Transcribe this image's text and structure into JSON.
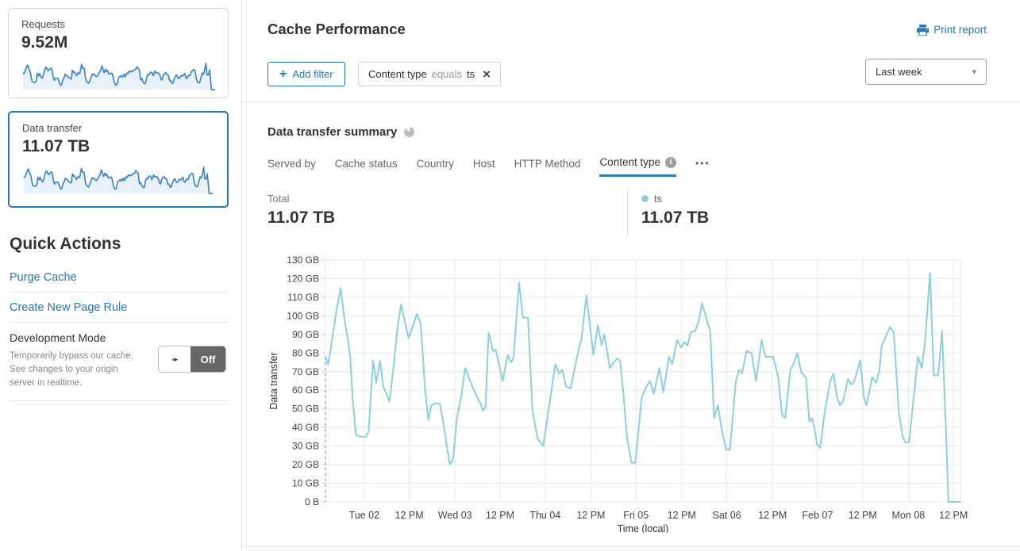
{
  "sidebar": {
    "requests_card": {
      "label": "Requests",
      "value": "9.52M"
    },
    "data_transfer_card": {
      "label": "Data transfer",
      "value": "11.07 TB"
    },
    "quick_actions": {
      "title": "Quick Actions",
      "purge_cache_label": "Purge Cache",
      "create_page_rule_label": "Create New Page Rule",
      "development_mode": {
        "title": "Development Mode",
        "description": "Temporarily bypass our cache. See changes to your origin server in realtime.",
        "toggle_state": "Off"
      }
    }
  },
  "header": {
    "title": "Cache Performance",
    "print_label": "Print report",
    "add_filter_label": "Add filter",
    "plus_glyph": "+",
    "filter_chip": {
      "field": "Content type",
      "operator": "equals",
      "value": "ts",
      "close_glyph": "×"
    },
    "time_range": "Last week",
    "caret_glyph": "▾"
  },
  "summary": {
    "title": "Data transfer summary",
    "tabs": [
      {
        "label": "Served by",
        "active": false
      },
      {
        "label": "Cache status",
        "active": false
      },
      {
        "label": "Country",
        "active": false
      },
      {
        "label": "Host",
        "active": false
      },
      {
        "label": "HTTP Method",
        "active": false
      },
      {
        "label": "Content type",
        "active": true,
        "has_info": true
      }
    ],
    "more_glyph": "•••",
    "total_label": "Total",
    "total_value": "11.07 TB",
    "legend": {
      "name": "ts",
      "value": "11.07 TB",
      "color": "#8bcfe0"
    }
  },
  "colors": {
    "accent_blue": "#2478b5",
    "chart_line": "#8bcfe0",
    "sparkline_line": "#3f87c6",
    "sparkline_fill": "#e9f2fa",
    "grid": "#e8e8e8"
  },
  "toggle_arrows": "◂▸",
  "chart_data": {
    "type": "line",
    "title": "Data transfer summary",
    "xlabel": "Time (local)",
    "ylabel": "Data transfer",
    "ylim": [
      0,
      130
    ],
    "grid": true,
    "leading_dashed_drop": true,
    "y_ticks": [
      "130 GB",
      "120 GB",
      "110 GB",
      "100 GB",
      "90 GB",
      "80 GB",
      "70 GB",
      "60 GB",
      "50 GB",
      "40 GB",
      "30 GB",
      "20 GB",
      "10 GB",
      "0 B"
    ],
    "x_ticks": [
      {
        "label": "Tue 02",
        "f": 0.061
      },
      {
        "label": "12 PM",
        "f": 0.132
      },
      {
        "label": "Wed 03",
        "f": 0.204
      },
      {
        "label": "12 PM",
        "f": 0.275
      },
      {
        "label": "Thu 04",
        "f": 0.346
      },
      {
        "label": "12 PM",
        "f": 0.418
      },
      {
        "label": "Fri 05",
        "f": 0.489
      },
      {
        "label": "12 PM",
        "f": 0.561
      },
      {
        "label": "Sat 06",
        "f": 0.632
      },
      {
        "label": "12 PM",
        "f": 0.704
      },
      {
        "label": "Feb 07",
        "f": 0.775
      },
      {
        "label": "12 PM",
        "f": 0.846
      },
      {
        "label": "Mon 08",
        "f": 0.918
      },
      {
        "label": "12 PM",
        "f": 0.989
      }
    ],
    "point_format": "[fraction_of_time_range, gigabytes]",
    "series": [
      {
        "name": "ts",
        "total": "11.07 TB",
        "color": "#8bcfe0",
        "points": [
          [
            0,
            78
          ],
          [
            0.004,
            74
          ],
          [
            0.01,
            86
          ],
          [
            0.016,
            100
          ],
          [
            0.024,
            115
          ],
          [
            0.03,
            98
          ],
          [
            0.035,
            88
          ],
          [
            0.039,
            78
          ],
          [
            0.043,
            55
          ],
          [
            0.048,
            36
          ],
          [
            0.056,
            35
          ],
          [
            0.064,
            35
          ],
          [
            0.068,
            38
          ],
          [
            0.075,
            76
          ],
          [
            0.08,
            64
          ],
          [
            0.086,
            76
          ],
          [
            0.091,
            62
          ],
          [
            0.096,
            58
          ],
          [
            0.101,
            54
          ],
          [
            0.107,
            72
          ],
          [
            0.114,
            95
          ],
          [
            0.119,
            106
          ],
          [
            0.125,
            97
          ],
          [
            0.131,
            88
          ],
          [
            0.138,
            95
          ],
          [
            0.144,
            101
          ],
          [
            0.15,
            96
          ],
          [
            0.157,
            60
          ],
          [
            0.162,
            44
          ],
          [
            0.167,
            52
          ],
          [
            0.173,
            53
          ],
          [
            0.18,
            53
          ],
          [
            0.186,
            42
          ],
          [
            0.191,
            30
          ],
          [
            0.196,
            20
          ],
          [
            0.201,
            23
          ],
          [
            0.207,
            45
          ],
          [
            0.214,
            57
          ],
          [
            0.22,
            72
          ],
          [
            0.229,
            64
          ],
          [
            0.239,
            56
          ],
          [
            0.244,
            53
          ],
          [
            0.248,
            49
          ],
          [
            0.252,
            51
          ],
          [
            0.257,
            91
          ],
          [
            0.264,
            81
          ],
          [
            0.268,
            82
          ],
          [
            0.279,
            65
          ],
          [
            0.287,
            79
          ],
          [
            0.292,
            75
          ],
          [
            0.296,
            77
          ],
          [
            0.305,
            118
          ],
          [
            0.311,
            99
          ],
          [
            0.319,
            99
          ],
          [
            0.326,
            49
          ],
          [
            0.334,
            34
          ],
          [
            0.343,
            30
          ],
          [
            0.362,
            74
          ],
          [
            0.368,
            69
          ],
          [
            0.373,
            71
          ],
          [
            0.379,
            62
          ],
          [
            0.386,
            61
          ],
          [
            0.4,
            84
          ],
          [
            0.403,
            87
          ],
          [
            0.411,
            111
          ],
          [
            0.422,
            79
          ],
          [
            0.429,
            95
          ],
          [
            0.435,
            84
          ],
          [
            0.439,
            90
          ],
          [
            0.448,
            72
          ],
          [
            0.454,
            75
          ],
          [
            0.459,
            77
          ],
          [
            0.464,
            76
          ],
          [
            0.47,
            55
          ],
          [
            0.475,
            34
          ],
          [
            0.482,
            21
          ],
          [
            0.488,
            21
          ],
          [
            0.498,
            56
          ],
          [
            0.504,
            61
          ],
          [
            0.511,
            65
          ],
          [
            0.517,
            58
          ],
          [
            0.526,
            72
          ],
          [
            0.532,
            59
          ],
          [
            0.541,
            78
          ],
          [
            0.546,
            74
          ],
          [
            0.554,
            87
          ],
          [
            0.56,
            83
          ],
          [
            0.565,
            86
          ],
          [
            0.57,
            84
          ],
          [
            0.575,
            91
          ],
          [
            0.582,
            92
          ],
          [
            0.588,
            97
          ],
          [
            0.593,
            107
          ],
          [
            0.602,
            96
          ],
          [
            0.606,
            92
          ],
          [
            0.612,
            45
          ],
          [
            0.618,
            52
          ],
          [
            0.625,
            37
          ],
          [
            0.631,
            28
          ],
          [
            0.637,
            28
          ],
          [
            0.646,
            64
          ],
          [
            0.651,
            71
          ],
          [
            0.656,
            69
          ],
          [
            0.663,
            81
          ],
          [
            0.671,
            80
          ],
          [
            0.678,
            65
          ],
          [
            0.687,
            87
          ],
          [
            0.693,
            78
          ],
          [
            0.7,
            78
          ],
          [
            0.705,
            78
          ],
          [
            0.713,
            67
          ],
          [
            0.719,
            47
          ],
          [
            0.724,
            45
          ],
          [
            0.732,
            71
          ],
          [
            0.737,
            74
          ],
          [
            0.743,
            80
          ],
          [
            0.749,
            70
          ],
          [
            0.754,
            68
          ],
          [
            0.757,
            66
          ],
          [
            0.762,
            43
          ],
          [
            0.766,
            45
          ],
          [
            0.77,
            40
          ],
          [
            0.774,
            31
          ],
          [
            0.779,
            29
          ],
          [
            0.785,
            45
          ],
          [
            0.789,
            54
          ],
          [
            0.795,
            65
          ],
          [
            0.8,
            69
          ],
          [
            0.805,
            57
          ],
          [
            0.81,
            52
          ],
          [
            0.815,
            54
          ],
          [
            0.823,
            66
          ],
          [
            0.828,
            63
          ],
          [
            0.833,
            65
          ],
          [
            0.842,
            76
          ],
          [
            0.848,
            56
          ],
          [
            0.852,
            52
          ],
          [
            0.861,
            67
          ],
          [
            0.867,
            64
          ],
          [
            0.872,
            70
          ],
          [
            0.876,
            84
          ],
          [
            0.88,
            87
          ],
          [
            0.889,
            94
          ],
          [
            0.895,
            91
          ],
          [
            0.903,
            48
          ],
          [
            0.909,
            35
          ],
          [
            0.913,
            32
          ],
          [
            0.919,
            32
          ],
          [
            0.926,
            55
          ],
          [
            0.933,
            78
          ],
          [
            0.939,
            72
          ],
          [
            0.944,
            85
          ],
          [
            0.952,
            123
          ],
          [
            0.958,
            68
          ],
          [
            0.965,
            68
          ],
          [
            0.971,
            92
          ],
          [
            0.977,
            40
          ],
          [
            0.981,
            0
          ],
          [
            1,
            0
          ]
        ]
      }
    ]
  }
}
